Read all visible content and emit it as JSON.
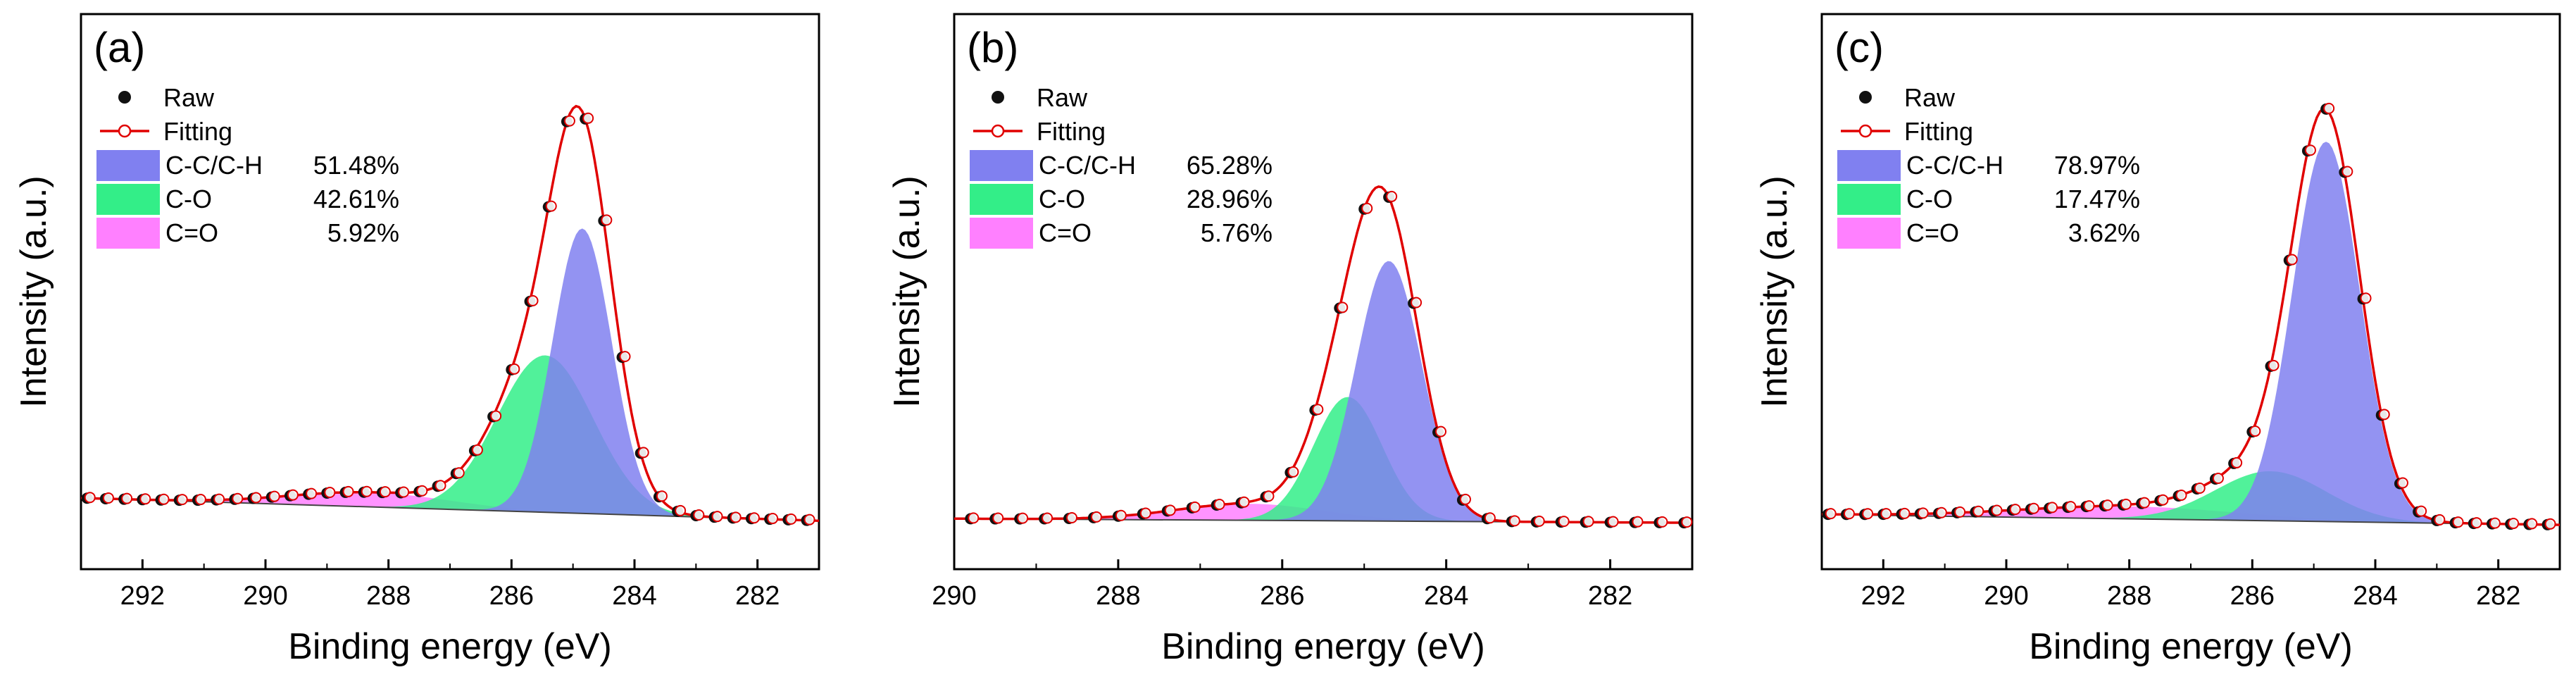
{
  "figure": {
    "panels": [
      {
        "letter": "(a)"
      },
      {
        "letter": "(b)"
      },
      {
        "letter": "(c)"
      }
    ]
  },
  "colors": {
    "cc_fill": "#8080f0",
    "co_fill": "#33ee88",
    "ceqo_fill": "#ff80ff",
    "fit_line": "#e00000",
    "raw_marker": "#111111",
    "baseline": "#444444"
  },
  "chart_data": [
    {
      "type": "area",
      "panel": "(a)",
      "xlabel": "Binding energy (eV)",
      "ylabel": "Intensity (a.u.)",
      "xlim": [
        293,
        281
      ],
      "x_reversed": true,
      "xticks": [
        292,
        290,
        288,
        286,
        284,
        282
      ],
      "legend_position": "top-left",
      "legend": [
        {
          "name": "Raw",
          "kind": "marker"
        },
        {
          "name": "Fitting",
          "kind": "line"
        },
        {
          "name": "C-C/C-H",
          "value": "51.48%",
          "kind": "fill"
        },
        {
          "name": "C-O",
          "value": "42.61%",
          "kind": "fill"
        },
        {
          "name": "C=O",
          "value": "5.92%",
          "kind": "fill"
        }
      ],
      "components": [
        {
          "name": "C-C/C-H",
          "center": 284.85,
          "height": 0.69,
          "sigma": 0.48
        },
        {
          "name": "C-O",
          "center": 285.45,
          "height": 0.38,
          "sigma": 0.78
        },
        {
          "name": "C=O",
          "center": 288.3,
          "height": 0.035,
          "sigma": 1.3
        }
      ],
      "baseline": {
        "left": 0.07,
        "right": 0.015
      },
      "raw_x": [
        292.9,
        292.6,
        292.3,
        292.0,
        291.7,
        291.4,
        291.1,
        290.8,
        290.5,
        290.2,
        289.9,
        289.6,
        289.3,
        289.0,
        288.7,
        288.4,
        288.1,
        287.8,
        287.5,
        287.2,
        286.9,
        286.6,
        286.3,
        286.0,
        285.7,
        285.4,
        285.1,
        284.8,
        284.5,
        284.2,
        283.9,
        283.6,
        283.3,
        283.0,
        282.7,
        282.4,
        282.1,
        281.8,
        281.5,
        281.2
      ],
      "fit_y_max": 1.0
    },
    {
      "type": "area",
      "panel": "(b)",
      "xlabel": "Binding energy (eV)",
      "ylabel": "Intensity (a.u.)",
      "xlim": [
        290,
        281
      ],
      "x_reversed": true,
      "xticks": [
        290,
        288,
        286,
        284,
        282
      ],
      "legend_position": "top-left",
      "legend": [
        {
          "name": "Raw",
          "kind": "marker"
        },
        {
          "name": "Fitting",
          "kind": "line"
        },
        {
          "name": "C-C/C-H",
          "value": "65.28%",
          "kind": "fill"
        },
        {
          "name": "C-O",
          "value": "28.96%",
          "kind": "fill"
        },
        {
          "name": "C=O",
          "value": "5.76%",
          "kind": "fill"
        }
      ],
      "components": [
        {
          "name": "C-C/C-H",
          "center": 284.7,
          "height": 0.63,
          "sigma": 0.4
        },
        {
          "name": "C-O",
          "center": 285.2,
          "height": 0.3,
          "sigma": 0.42
        },
        {
          "name": "C=O",
          "center": 286.4,
          "height": 0.04,
          "sigma": 0.9
        }
      ],
      "baseline": {
        "left": 0.02,
        "right": 0.01
      },
      "raw_x": [
        289.8,
        289.5,
        289.2,
        288.9,
        288.6,
        288.3,
        288.0,
        287.7,
        287.4,
        287.1,
        286.8,
        286.5,
        286.2,
        285.9,
        285.6,
        285.3,
        285.0,
        284.7,
        284.4,
        284.1,
        283.8,
        283.5,
        283.2,
        282.9,
        282.6,
        282.3,
        282.0,
        281.7,
        281.4,
        281.1
      ],
      "fit_y_max": 1.0
    },
    {
      "type": "area",
      "panel": "(c)",
      "xlabel": "Binding energy (eV)",
      "ylabel": "Intensity (a.u.)",
      "xlim": [
        293,
        281
      ],
      "x_reversed": true,
      "xticks": [
        292,
        290,
        288,
        286,
        284,
        282
      ],
      "legend_position": "top-left",
      "legend": [
        {
          "name": "Raw",
          "kind": "marker"
        },
        {
          "name": "Fitting",
          "kind": "line"
        },
        {
          "name": "C-C/C-H",
          "value": "78.97%",
          "kind": "fill"
        },
        {
          "name": "C-O",
          "value": "17.47%",
          "kind": "fill"
        },
        {
          "name": "C=O",
          "value": "3.62%",
          "kind": "fill"
        }
      ],
      "components": [
        {
          "name": "C-C/C-H",
          "center": 284.8,
          "height": 0.92,
          "sigma": 0.55
        },
        {
          "name": "C-O",
          "center": 285.7,
          "height": 0.12,
          "sigma": 0.9
        },
        {
          "name": "C=O",
          "center": 288.0,
          "height": 0.03,
          "sigma": 1.8
        }
      ],
      "baseline": {
        "left": 0.03,
        "right": 0.005
      },
      "raw_x": [
        292.9,
        292.6,
        292.3,
        292.0,
        291.7,
        291.4,
        291.1,
        290.8,
        290.5,
        290.2,
        289.9,
        289.6,
        289.3,
        289.0,
        288.7,
        288.4,
        288.1,
        287.8,
        287.5,
        287.2,
        286.9,
        286.6,
        286.3,
        286.0,
        285.7,
        285.4,
        285.1,
        284.8,
        284.5,
        284.2,
        283.9,
        283.6,
        283.3,
        283.0,
        282.7,
        282.4,
        282.1,
        281.8,
        281.5,
        281.2
      ],
      "fit_y_max": 1.0
    }
  ]
}
